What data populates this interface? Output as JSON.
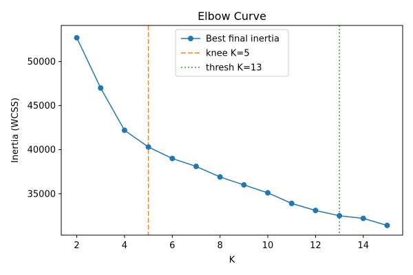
{
  "chart_data": {
    "type": "line",
    "title": "Elbow Curve",
    "xlabel": "K",
    "ylabel": "Inertia (WCSS)",
    "xlim": [
      1.35,
      15.65
    ],
    "ylim": [
      30300,
      54100
    ],
    "x_ticks": [
      2,
      4,
      6,
      8,
      10,
      12,
      14
    ],
    "y_ticks": [
      35000,
      40000,
      45000,
      50000
    ],
    "legend_position": "top-center",
    "grid": false,
    "series": [
      {
        "name": "Best final inertia",
        "color": "#1f77b4",
        "marker": "circle",
        "x": [
          2,
          3,
          4,
          5,
          6,
          7,
          8,
          9,
          10,
          11,
          12,
          13,
          14,
          15
        ],
        "y": [
          52700,
          47000,
          42200,
          40300,
          39000,
          38100,
          36900,
          36000,
          35100,
          33900,
          33100,
          32500,
          32200,
          31400
        ]
      }
    ],
    "vlines": [
      {
        "name": "knee K=5",
        "x": 5,
        "color": "#ff7f0e",
        "style": "dashed"
      },
      {
        "name": "thresh K=13",
        "x": 13,
        "color": "#2ca02c",
        "style": "dotted"
      }
    ]
  }
}
